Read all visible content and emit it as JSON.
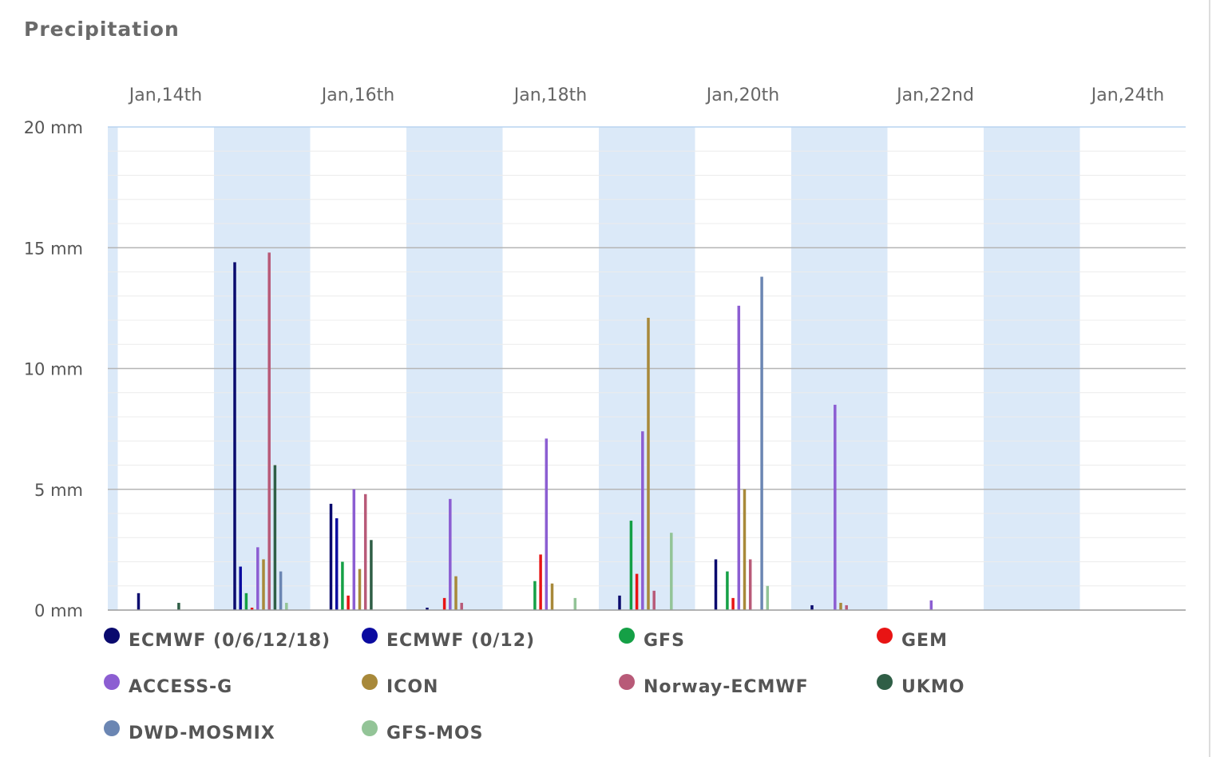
{
  "title": "Precipitation",
  "chart_data": {
    "type": "bar",
    "title": "Precipitation",
    "ylim": [
      0,
      20
    ],
    "yticks": [
      "0 mm",
      "5 mm",
      "10 mm",
      "15 mm",
      "20 mm"
    ],
    "xticks": [
      "Jan,14th",
      "Jan,16th",
      "Jan,18th",
      "Jan,20th",
      "Jan,22nd",
      "Jan,24th"
    ],
    "grid": true,
    "legend_position": "bottom",
    "categories": [
      "Jan 14",
      "Jan 15",
      "Jan 16",
      "Jan 17",
      "Jan 18",
      "Jan 19",
      "Jan 20",
      "Jan 21",
      "Jan 22",
      "Jan 23",
      "Jan 24"
    ],
    "series": [
      {
        "name": "ECMWF (0/6/12/18)",
        "color": "#0a0a6e",
        "values": [
          0.7,
          14.4,
          4.4,
          0.1,
          0,
          0.6,
          2.1,
          0.2,
          0,
          0,
          0
        ]
      },
      {
        "name": "ECMWF (0/12)",
        "color": "#0b0ba0",
        "values": [
          0,
          1.8,
          3.8,
          0,
          0,
          0,
          0,
          0,
          0,
          0,
          0
        ]
      },
      {
        "name": "GFS",
        "color": "#15a046",
        "values": [
          0,
          0.7,
          2.0,
          0,
          1.2,
          3.7,
          1.6,
          0,
          0,
          0,
          0
        ]
      },
      {
        "name": "GEM",
        "color": "#e81414",
        "values": [
          0,
          0.1,
          0.6,
          0.5,
          2.3,
          1.5,
          0.5,
          0,
          0,
          0,
          0
        ]
      },
      {
        "name": "ACCESS-G",
        "color": "#8c5ed2",
        "values": [
          0,
          2.6,
          5.0,
          4.6,
          7.1,
          7.4,
          12.6,
          8.5,
          0.4,
          0,
          0
        ]
      },
      {
        "name": "ICON",
        "color": "#a8893a",
        "values": [
          0,
          2.1,
          1.7,
          1.4,
          1.1,
          12.1,
          5.0,
          0.3,
          0,
          0,
          0
        ]
      },
      {
        "name": "Norway-ECMWF",
        "color": "#b85a78",
        "values": [
          0,
          14.8,
          4.8,
          0.3,
          0,
          0.8,
          2.1,
          0.2,
          0,
          0,
          0
        ]
      },
      {
        "name": "UKMO",
        "color": "#2f5e46",
        "values": [
          0.3,
          6.0,
          2.9,
          0,
          0,
          0,
          0,
          0,
          0,
          0,
          0
        ]
      },
      {
        "name": "DWD-MOSMIX",
        "color": "#6b86b3",
        "values": [
          0,
          1.6,
          0,
          0,
          0,
          0,
          13.8,
          0,
          0,
          0,
          0
        ]
      },
      {
        "name": "GFS-MOS",
        "color": "#93c497",
        "values": [
          0,
          0.3,
          0,
          0,
          0.5,
          3.2,
          1.0,
          0,
          0,
          0,
          0
        ]
      }
    ]
  }
}
